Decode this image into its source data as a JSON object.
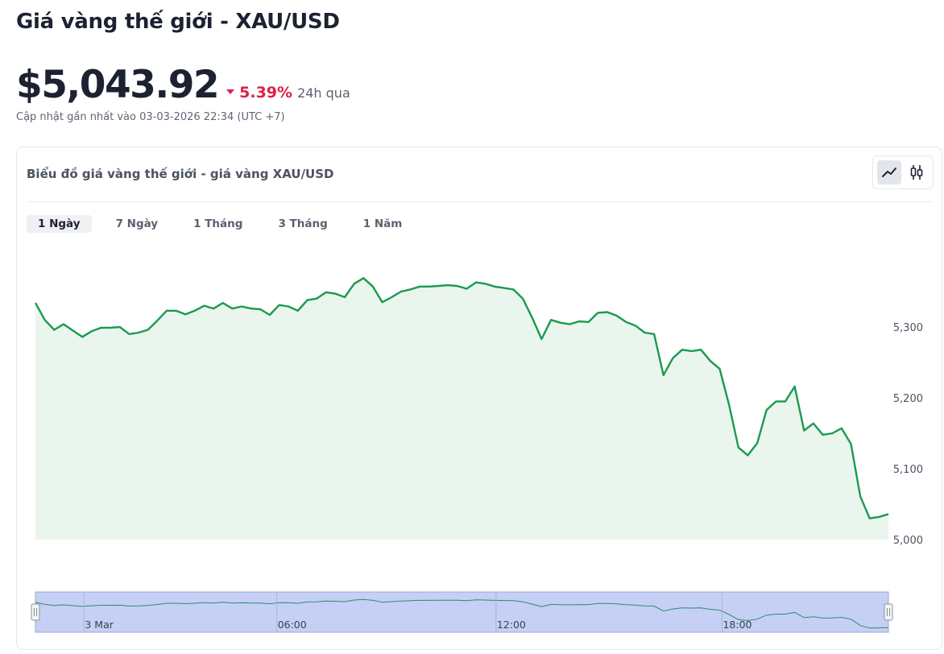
{
  "page": {
    "title": "Giá vàng thế giới - XAU/USD",
    "price": "$5,043.92",
    "change_pct": "5.39%",
    "change_direction": "down",
    "change_period": "24h qua",
    "updated": "Cập nhật gần nhất vào 03-03-2026 22:34 (UTC +7)"
  },
  "chart_card": {
    "title": "Biểu đồ giá vàng thế giới - giá vàng XAU/USD",
    "chart_types": [
      {
        "name": "line",
        "icon": "line-chart-icon",
        "active": true
      },
      {
        "name": "candlestick",
        "icon": "candlestick-icon",
        "active": false
      }
    ],
    "range_tabs": [
      {
        "label": "1 Ngày",
        "active": true
      },
      {
        "label": "7 Ngày",
        "active": false
      },
      {
        "label": "1 Tháng",
        "active": false
      },
      {
        "label": "3 Tháng",
        "active": false
      },
      {
        "label": "1 Năm",
        "active": false
      }
    ]
  },
  "colors": {
    "line": "#1a9a50",
    "area": "#eaf5ee",
    "navigator_fill": "#c5d0f4",
    "navigator_line": "#2f8a6e",
    "down": "#e11d48"
  },
  "chart_data": {
    "type": "area",
    "title": "",
    "xlabel": "",
    "ylabel": "",
    "ylim": [
      5000,
      5370
    ],
    "y_ticks": [
      5000,
      5100,
      5200,
      5300
    ],
    "y_tick_labels": [
      "5,000",
      "5,100",
      "5,200",
      "5,300"
    ],
    "navigator_ticks": [
      "3 Mar",
      "06:00",
      "12:00",
      "18:00"
    ],
    "grid": false,
    "series": [
      {
        "values": [
          5334,
          5310,
          5296,
          5304,
          5295,
          5286,
          5294,
          5299,
          5299,
          5300,
          5290,
          5292,
          5296,
          5309,
          5323,
          5323,
          5318,
          5323,
          5330,
          5326,
          5334,
          5326,
          5329,
          5326,
          5325,
          5317,
          5331,
          5329,
          5323,
          5338,
          5340,
          5349,
          5347,
          5342,
          5361,
          5369,
          5357,
          5335,
          5342,
          5350,
          5353,
          5357,
          5357,
          5358,
          5359,
          5358,
          5354,
          5363,
          5361,
          5357,
          5355,
          5353,
          5340,
          5313,
          5283,
          5310,
          5306,
          5304,
          5308,
          5307,
          5320,
          5321,
          5316,
          5307,
          5302,
          5292,
          5290,
          5232,
          5256,
          5268,
          5266,
          5268,
          5252,
          5241,
          5190,
          5130,
          5119,
          5136,
          5183,
          5195,
          5195,
          5216,
          5154,
          5164,
          5148,
          5150,
          5157,
          5135,
          5061,
          5030,
          5032,
          5036
        ]
      }
    ]
  }
}
